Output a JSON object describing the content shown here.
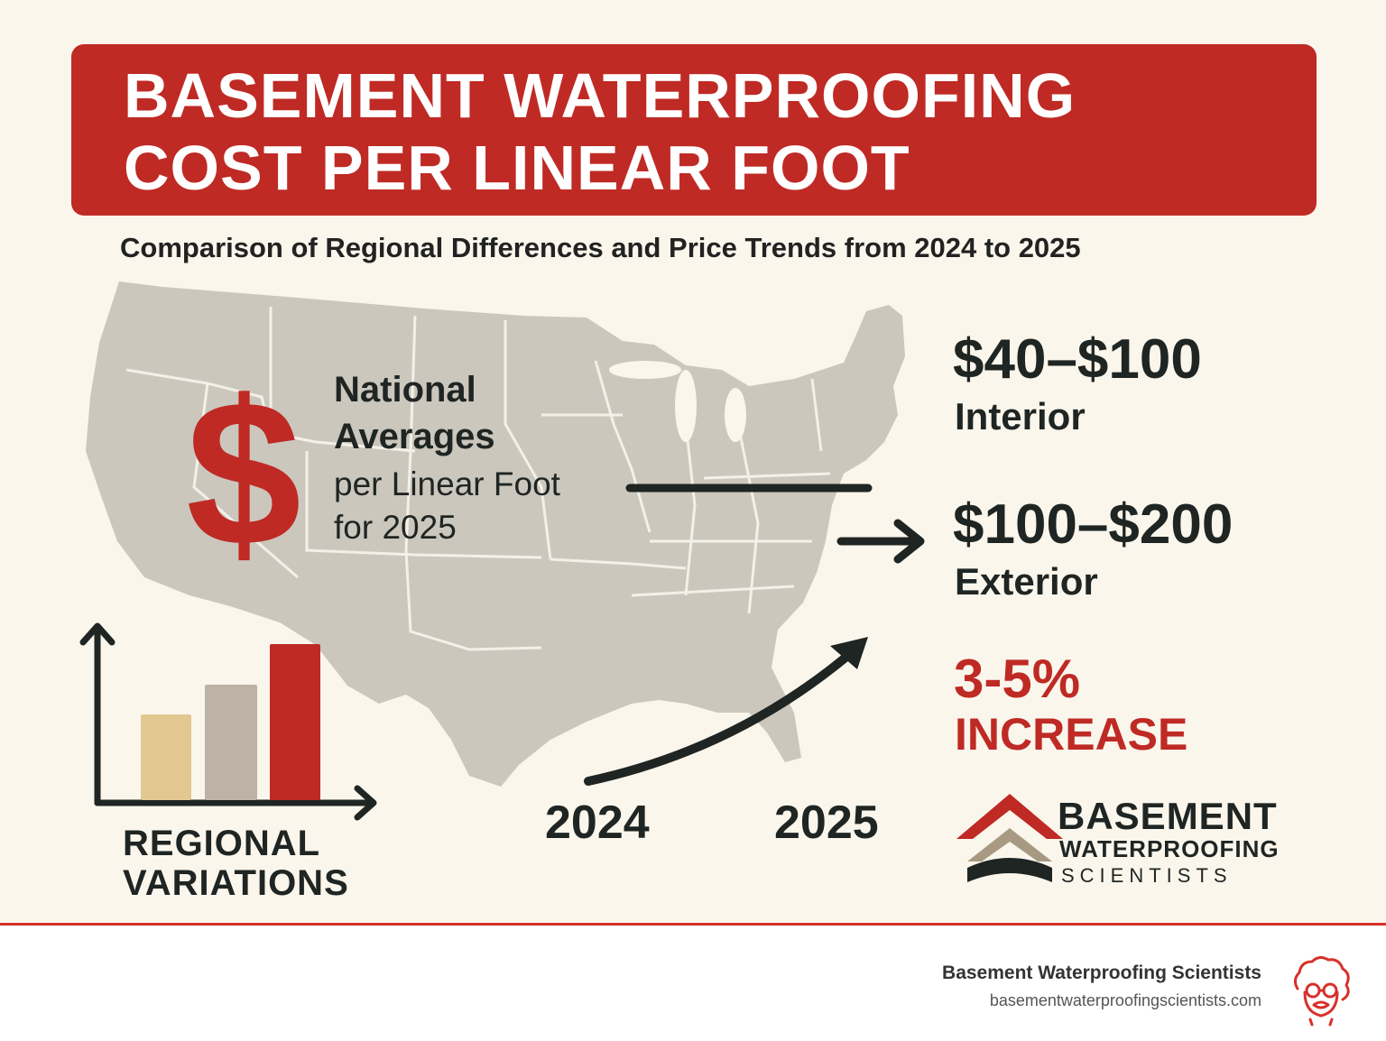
{
  "title": {
    "line1": "BASEMENT WATERPROOFING",
    "line2": "COST PER LINEAR FOOT"
  },
  "subtitle": "Comparison of Regional Differences and Price Trends from 2024 to 2025",
  "national": {
    "symbol": "$",
    "line1": "National",
    "line2": "Averages",
    "line3": "per Linear Foot",
    "line4": "for 2025"
  },
  "prices": {
    "interior_range": "$40–$100",
    "interior_label": "Interior",
    "exterior_range": "$100–$200",
    "exterior_label": "Exterior"
  },
  "trend": {
    "percent": "3-5%",
    "label": "INCREASE",
    "year_start": "2024",
    "year_end": "2025"
  },
  "regional": {
    "line1": "REGIONAL",
    "line2": "VARIATIONS",
    "bar_levels": [
      0.42,
      0.57,
      0.77
    ]
  },
  "logo": {
    "word1": "BASEMENT",
    "word2": "WATERPROOFING",
    "word3": "SCIENTISTS"
  },
  "footer": {
    "company": "Basement Waterproofing Scientists",
    "url": "basementwaterproofingscientists.com"
  },
  "colors": {
    "accent_red": "#bf2a25",
    "dark": "#1f2523",
    "map_gray": "#cbc7bd",
    "bar_tan": "#e2c890",
    "bar_gray": "#bcb3a6"
  },
  "icons": {
    "map": "us-map-illustration",
    "logo": "house-roof-logo-icon",
    "mascot": "scientist-mascot-icon"
  }
}
